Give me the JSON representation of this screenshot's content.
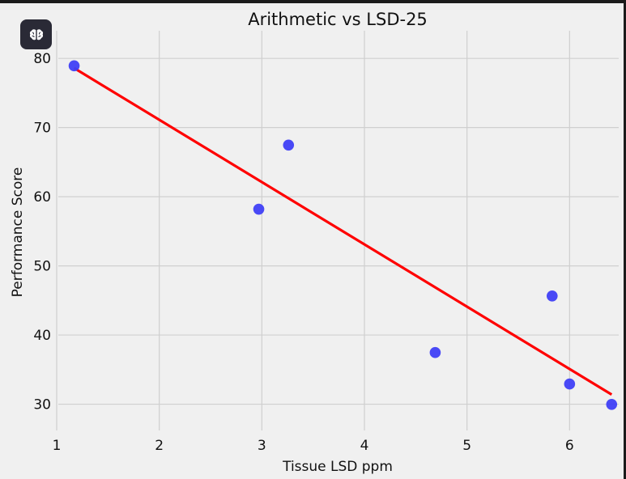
{
  "badge": {
    "icon": "brain-icon"
  },
  "chart_data": {
    "type": "scatter",
    "title": "Arithmetic vs LSD-25",
    "xlabel": "Tissue LSD ppm",
    "ylabel": "Performance Score",
    "xlim": [
      1,
      6.4
    ],
    "ylim": [
      25.5,
      84
    ],
    "xticks": [
      1,
      2,
      3,
      4,
      5,
      6
    ],
    "yticks": [
      30,
      40,
      50,
      60,
      70,
      80
    ],
    "grid": true,
    "colors": {
      "points": "#3f3ff5",
      "trendline": "#ff0000",
      "grid": "#cfcfcf",
      "background": "#f0f0f0"
    },
    "points": [
      {
        "x": 1.17,
        "y": 78.93
      },
      {
        "x": 2.97,
        "y": 58.2
      },
      {
        "x": 3.26,
        "y": 67.47
      },
      {
        "x": 4.69,
        "y": 37.47
      },
      {
        "x": 5.83,
        "y": 45.65
      },
      {
        "x": 6.0,
        "y": 32.92
      },
      {
        "x": 6.41,
        "y": 29.97
      }
    ],
    "trendline": {
      "from": {
        "x": 1.17,
        "y": 78.6
      },
      "to": {
        "x": 6.41,
        "y": 31.4
      }
    }
  }
}
